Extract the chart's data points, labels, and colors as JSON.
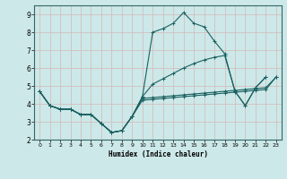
{
  "xlabel": "Humidex (Indice chaleur)",
  "background_color": "#cde8e8",
  "grid_color": "#b8d8d8",
  "line_color": "#1a6060",
  "xlim": [
    -0.5,
    23.5
  ],
  "ylim": [
    2,
    9.5
  ],
  "xticks": [
    0,
    1,
    2,
    3,
    4,
    5,
    6,
    7,
    8,
    9,
    10,
    11,
    12,
    13,
    14,
    15,
    16,
    17,
    18,
    19,
    20,
    21,
    22,
    23
  ],
  "yticks": [
    2,
    3,
    4,
    5,
    6,
    7,
    8,
    9
  ],
  "series": [
    {
      "x": [
        0,
        1,
        2,
        3,
        4,
        5,
        6,
        7,
        8,
        9,
        10,
        11,
        12,
        13,
        14,
        15,
        16,
        17,
        18,
        19,
        20,
        21,
        22
      ],
      "y": [
        4.7,
        3.9,
        3.7,
        3.7,
        3.4,
        3.4,
        2.9,
        2.4,
        2.5,
        3.3,
        4.4,
        8.0,
        8.2,
        8.5,
        9.1,
        8.5,
        8.3,
        7.5,
        6.8,
        4.7,
        3.9,
        4.9,
        5.5
      ]
    },
    {
      "x": [
        0,
        1,
        2,
        3,
        4,
        5,
        6,
        7,
        8,
        9,
        10,
        11,
        12,
        13,
        14,
        15,
        16,
        17,
        18,
        19,
        20,
        21,
        22,
        23
      ],
      "y": [
        4.7,
        3.9,
        3.7,
        3.7,
        3.4,
        3.4,
        2.9,
        2.4,
        2.5,
        3.3,
        4.3,
        4.35,
        4.4,
        4.45,
        4.5,
        4.55,
        4.6,
        4.65,
        4.7,
        4.75,
        4.8,
        4.85,
        4.9,
        5.5
      ]
    },
    {
      "x": [
        0,
        1,
        2,
        3,
        4,
        5,
        6,
        7,
        8,
        9,
        10,
        11,
        12,
        13,
        14,
        15,
        16,
        17,
        18,
        19,
        20,
        21,
        22,
        23
      ],
      "y": [
        4.7,
        3.9,
        3.7,
        3.7,
        3.4,
        3.4,
        2.9,
        2.4,
        2.5,
        3.3,
        4.2,
        4.25,
        4.3,
        4.35,
        4.4,
        4.45,
        4.5,
        4.55,
        4.6,
        4.65,
        4.7,
        4.75,
        4.8,
        5.5
      ]
    },
    {
      "x": [
        0,
        1,
        2,
        3,
        4,
        5,
        6,
        7,
        8,
        9,
        10,
        11,
        12,
        13,
        14,
        15,
        16,
        17,
        18,
        19,
        20,
        21,
        22
      ],
      "y": [
        4.7,
        3.9,
        3.7,
        3.7,
        3.4,
        3.4,
        2.9,
        2.4,
        2.5,
        3.3,
        4.4,
        5.1,
        5.4,
        5.7,
        6.0,
        6.25,
        6.45,
        6.6,
        6.7,
        4.7,
        3.9,
        4.9,
        5.5
      ]
    }
  ]
}
